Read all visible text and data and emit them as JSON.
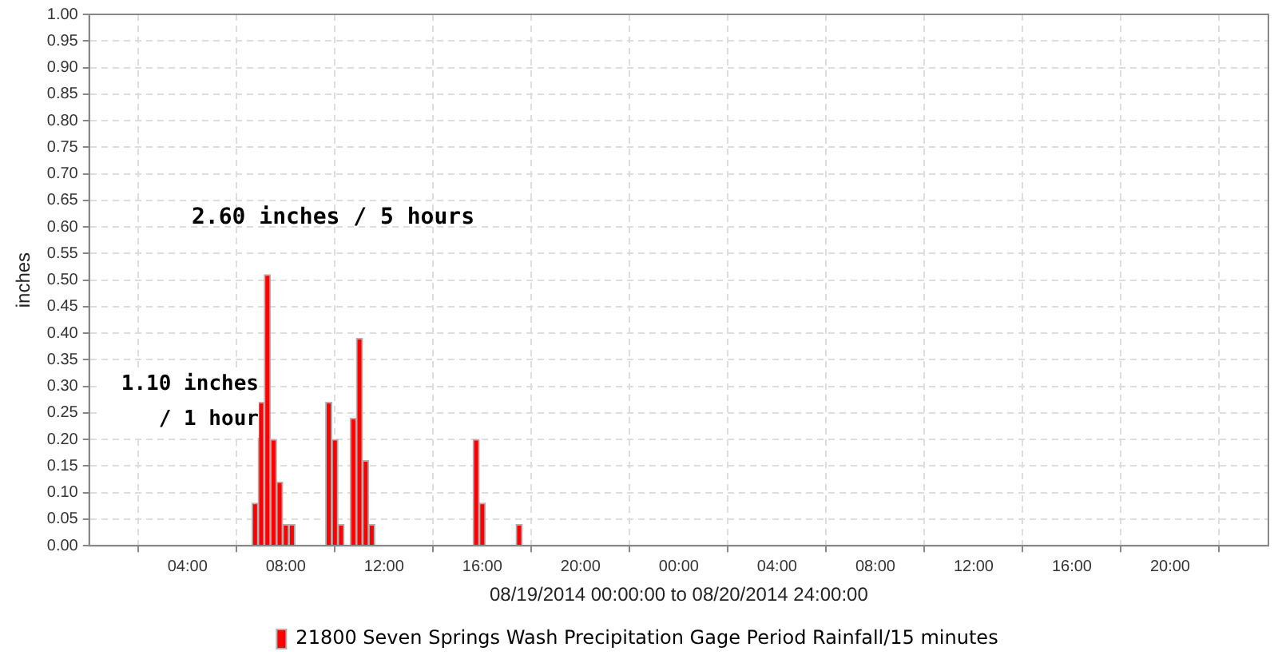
{
  "chart_data": {
    "type": "bar",
    "xlabel": "08/19/2014 00:00:00 to 08/20/2014 24:00:00",
    "ylabel": "inches",
    "x": [
      "2014-08-19T06:45",
      "2014-08-19T07:00",
      "2014-08-19T07:15",
      "2014-08-19T07:30",
      "2014-08-19T07:45",
      "2014-08-19T08:00",
      "2014-08-19T08:15",
      "2014-08-19T09:45",
      "2014-08-19T10:00",
      "2014-08-19T10:15",
      "2014-08-19T10:45",
      "2014-08-19T11:00",
      "2014-08-19T11:15",
      "2014-08-19T11:30",
      "2014-08-19T15:45",
      "2014-08-19T16:00",
      "2014-08-19T17:30"
    ],
    "series": [
      {
        "name": "21800 Seven Springs Wash Precipitation Gage Period Rainfall/15 minutes",
        "color": "#ff0000",
        "values": [
          0.08,
          0.27,
          0.51,
          0.2,
          0.12,
          0.04,
          0.04,
          0.27,
          0.2,
          0.04,
          0.24,
          0.39,
          0.16,
          0.04,
          0.2,
          0.08,
          0.04
        ]
      }
    ],
    "xlim": [
      "2014-08-19T00:00",
      "2014-08-21T00:00"
    ],
    "xticks": [
      {
        "value": "2014-08-19T04:00",
        "label": "04:00"
      },
      {
        "value": "2014-08-19T08:00",
        "label": "08:00"
      },
      {
        "value": "2014-08-19T12:00",
        "label": "12:00"
      },
      {
        "value": "2014-08-19T16:00",
        "label": "16:00"
      },
      {
        "value": "2014-08-19T20:00",
        "label": "20:00"
      },
      {
        "value": "2014-08-20T00:00",
        "label": "00:00"
      },
      {
        "value": "2014-08-20T04:00",
        "label": "04:00"
      },
      {
        "value": "2014-08-20T08:00",
        "label": "08:00"
      },
      {
        "value": "2014-08-20T12:00",
        "label": "12:00"
      },
      {
        "value": "2014-08-20T16:00",
        "label": "16:00"
      },
      {
        "value": "2014-08-20T20:00",
        "label": "20:00"
      }
    ],
    "ylim": [
      0,
      1
    ],
    "yticks": [
      {
        "value": 0,
        "label": "0.00"
      },
      {
        "value": 0.05,
        "label": "0.05"
      },
      {
        "value": 0.1,
        "label": "0.10"
      },
      {
        "value": 0.15,
        "label": "0.15"
      },
      {
        "value": 0.2,
        "label": "0.20"
      },
      {
        "value": 0.25,
        "label": "0.25"
      },
      {
        "value": 0.3,
        "label": "0.30"
      },
      {
        "value": 0.35,
        "label": "0.35"
      },
      {
        "value": 0.4,
        "label": "0.40"
      },
      {
        "value": 0.45,
        "label": "0.45"
      },
      {
        "value": 0.5,
        "label": "0.50"
      },
      {
        "value": 0.55,
        "label": "0.55"
      },
      {
        "value": 0.6,
        "label": "0.60"
      },
      {
        "value": 0.65,
        "label": "0.65"
      },
      {
        "value": 0.7,
        "label": "0.70"
      },
      {
        "value": 0.75,
        "label": "0.75"
      },
      {
        "value": 0.8,
        "label": "0.80"
      },
      {
        "value": 0.85,
        "label": "0.85"
      },
      {
        "value": 0.9,
        "label": "0.90"
      },
      {
        "value": 0.95,
        "label": "0.95"
      },
      {
        "value": 1,
        "label": "1.00"
      }
    ],
    "annotations": [
      "2.60 inches / 5 hours",
      "1.10 inches / 1 hour"
    ],
    "grid": true,
    "legend": "bottom"
  }
}
